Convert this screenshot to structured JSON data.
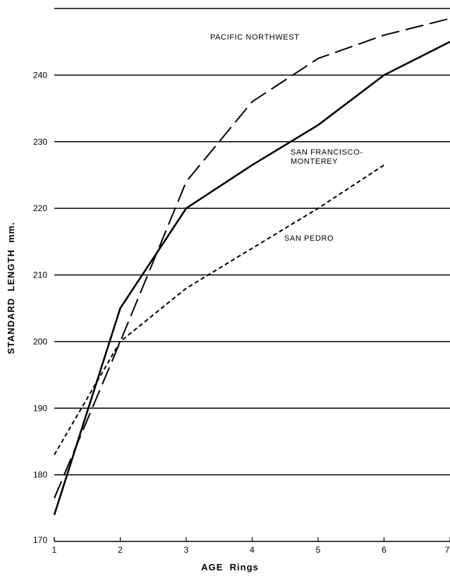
{
  "chart_data": {
    "type": "line",
    "xlabel": "AGE  Rings",
    "ylabel": "STANDARD  LENGTH  mm.",
    "xlim": [
      1,
      7
    ],
    "ylim": [
      170,
      250
    ],
    "x_ticks": [
      "1",
      "2",
      "3",
      "4",
      "5",
      "6",
      "7"
    ],
    "y_ticks": [
      "170",
      "180",
      "190",
      "200",
      "210",
      "220",
      "230",
      "240"
    ],
    "grid": "horizontal",
    "series": [
      {
        "name": "PACIFIC NORTHWEST",
        "style": "long-dash",
        "x": [
          1,
          2,
          3,
          4,
          5,
          6,
          7
        ],
        "y": [
          176.5,
          200,
          224,
          236,
          242.5,
          246,
          248.5
        ]
      },
      {
        "name": "SAN FRANCISCO-\nMONTEREY",
        "style": "solid",
        "x": [
          1,
          2,
          3,
          4,
          5,
          6,
          7
        ],
        "y": [
          174,
          205,
          220,
          226.5,
          232.5,
          240,
          245
        ]
      },
      {
        "name": "SAN PEDRO",
        "style": "short-dash",
        "x": [
          1,
          2,
          3,
          4,
          5,
          6
        ],
        "y": [
          183,
          200,
          208,
          214,
          220,
          226.5
        ]
      }
    ]
  },
  "labels": {
    "pacific_northwest": "PACIFIC NORTHWEST",
    "sf_line1": "SAN FRANCISCO-",
    "sf_line2": "MONTEREY",
    "san_pedro": "SAN PEDRO"
  }
}
